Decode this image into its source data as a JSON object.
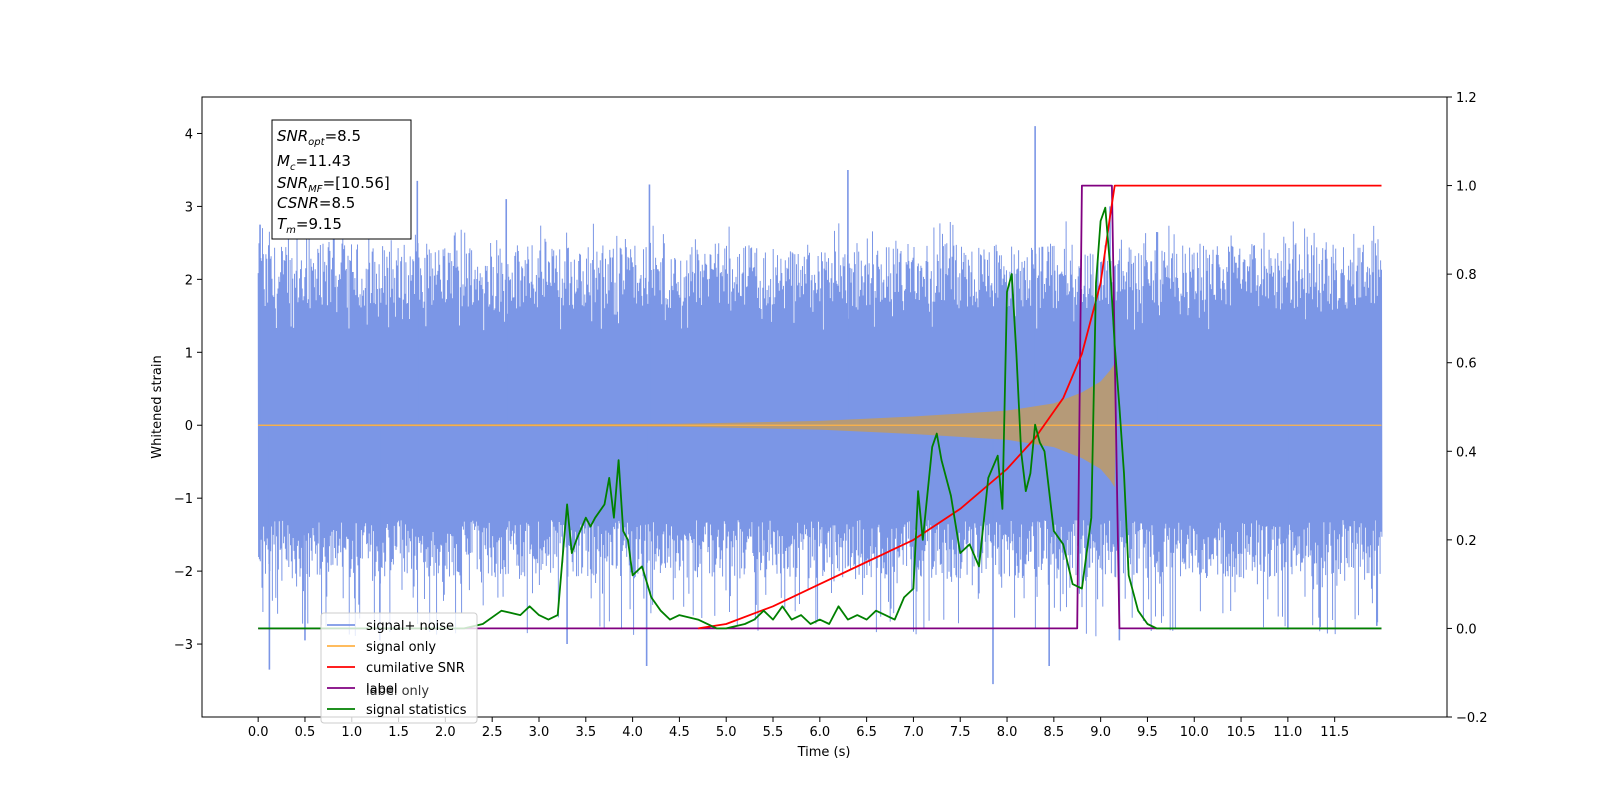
{
  "chart_data": {
    "type": "line",
    "xlabel": "Time (s)",
    "ylabel": "Whitened strain",
    "xlim": [
      -0.6,
      12.7
    ],
    "ylim": [
      -4.0,
      4.5
    ],
    "ylim_right": [
      -0.2,
      1.2
    ],
    "x_ticks": [
      "0.0",
      "0.5",
      "1.0",
      "1.5",
      "2.0",
      "2.5",
      "3.0",
      "3.5",
      "4.0",
      "4.5",
      "5.0",
      "5.5",
      "6.0",
      "6.5",
      "7.0",
      "7.5",
      "8.0",
      "8.5",
      "9.0",
      "9.5",
      "10.0",
      "10.5",
      "11.0",
      "11.5"
    ],
    "y_ticks_left": [
      "−3",
      "−2",
      "−1",
      "0",
      "1",
      "2",
      "3",
      "4"
    ],
    "y_ticks_right": [
      "−0.2",
      "0.0",
      "0.2",
      "0.4",
      "0.6",
      "0.8",
      "1.0",
      "1.2"
    ],
    "grid": false,
    "legend_position": "lower-left",
    "annotation": {
      "snr_opt": {
        "sym": "SNR",
        "sub": "opt",
        "val": "=8.5"
      },
      "mc": {
        "sym": "M",
        "sub": "c",
        "val": "=11.43"
      },
      "snr_mf": {
        "sym": "SNR",
        "sub": "MF",
        "val": "=[10.56]"
      },
      "csnr": {
        "sym": "CSNR",
        "sub": "",
        "val": "=8.5"
      },
      "tm": {
        "sym": "T",
        "sub": "m",
        "val": "=9.15"
      }
    },
    "series": [
      {
        "name": "signal+ noise",
        "color": "#7b96e6",
        "axis": "left",
        "x_range": [
          0.0,
          12.0
        ],
        "band_lower": -1.3,
        "band_upper": 1.3,
        "peaks": [
          {
            "x": 0.02,
            "y": 2.75
          },
          {
            "x": 0.12,
            "y": -3.35
          },
          {
            "x": 0.5,
            "y": -2.95
          },
          {
            "x": 1.3,
            "y": -2.95
          },
          {
            "x": 1.7,
            "y": 3.35
          },
          {
            "x": 2.65,
            "y": 3.1
          },
          {
            "x": 3.3,
            "y": -3.0
          },
          {
            "x": 4.15,
            "y": -3.3
          },
          {
            "x": 4.18,
            "y": 3.3
          },
          {
            "x": 6.3,
            "y": 3.5
          },
          {
            "x": 7.85,
            "y": -3.55
          },
          {
            "x": 8.3,
            "y": 4.1
          },
          {
            "x": 8.45,
            "y": -3.3
          },
          {
            "x": 9.1,
            "y": 3.0
          },
          {
            "x": 9.2,
            "y": -2.95
          },
          {
            "x": 9.6,
            "y": 2.65
          },
          {
            "x": 11.0,
            "y": -2.8
          },
          {
            "x": 11.95,
            "y": -2.75
          }
        ]
      },
      {
        "name": "signal only",
        "color": "#ffb347",
        "axis": "left",
        "envelope": {
          "x": [
            0.0,
            4.5,
            6.0,
            7.0,
            8.0,
            8.5,
            8.8,
            9.0,
            9.1,
            9.15,
            9.16,
            12.0
          ],
          "amp": [
            0.01,
            0.02,
            0.06,
            0.12,
            0.2,
            0.3,
            0.45,
            0.6,
            0.75,
            0.85,
            0.0,
            0.0
          ]
        }
      },
      {
        "name": "cumilative SNR",
        "color": "#ff0000",
        "axis": "right",
        "x": [
          4.7,
          5.0,
          5.5,
          6.0,
          6.5,
          7.0,
          7.5,
          8.0,
          8.3,
          8.6,
          8.8,
          9.0,
          9.1,
          9.15,
          12.0
        ],
        "y": [
          0.0,
          0.01,
          0.05,
          0.1,
          0.15,
          0.2,
          0.27,
          0.36,
          0.43,
          0.52,
          0.62,
          0.78,
          0.93,
          1.0,
          1.0
        ]
      },
      {
        "name": "label",
        "color": "#800080",
        "axis": "right",
        "x": [
          0.0,
          8.75,
          8.8,
          9.12,
          9.2,
          12.0
        ],
        "y": [
          0.0,
          0.0,
          1.0,
          1.0,
          0.0,
          0.0
        ]
      },
      {
        "name": "signal statistics",
        "color": "#008000",
        "axis": "right",
        "x": [
          0.0,
          2.2,
          2.4,
          2.6,
          2.8,
          2.9,
          3.0,
          3.1,
          3.2,
          3.3,
          3.35,
          3.4,
          3.5,
          3.55,
          3.6,
          3.7,
          3.75,
          3.8,
          3.85,
          3.9,
          3.95,
          4.0,
          4.05,
          4.1,
          4.2,
          4.3,
          4.4,
          4.5,
          4.7,
          4.9,
          5.0,
          5.2,
          5.3,
          5.4,
          5.5,
          5.6,
          5.7,
          5.8,
          5.9,
          6.0,
          6.1,
          6.2,
          6.3,
          6.4,
          6.5,
          6.6,
          6.7,
          6.8,
          6.9,
          7.0,
          7.05,
          7.1,
          7.2,
          7.25,
          7.3,
          7.4,
          7.5,
          7.6,
          7.7,
          7.8,
          7.9,
          7.95,
          8.0,
          8.05,
          8.1,
          8.15,
          8.2,
          8.25,
          8.3,
          8.35,
          8.4,
          8.5,
          8.6,
          8.7,
          8.8,
          8.9,
          8.95,
          9.0,
          9.05,
          9.1,
          9.15,
          9.2,
          9.25,
          9.3,
          9.4,
          9.5,
          9.6,
          9.8,
          12.0
        ],
        "y": [
          0.0,
          0.0,
          0.01,
          0.04,
          0.03,
          0.05,
          0.03,
          0.02,
          0.03,
          0.28,
          0.17,
          0.2,
          0.25,
          0.23,
          0.25,
          0.28,
          0.34,
          0.25,
          0.38,
          0.22,
          0.2,
          0.12,
          0.13,
          0.14,
          0.07,
          0.04,
          0.02,
          0.03,
          0.02,
          0.0,
          0.0,
          0.01,
          0.02,
          0.04,
          0.02,
          0.05,
          0.02,
          0.03,
          0.01,
          0.02,
          0.01,
          0.05,
          0.02,
          0.03,
          0.02,
          0.04,
          0.03,
          0.02,
          0.07,
          0.09,
          0.31,
          0.2,
          0.41,
          0.44,
          0.38,
          0.3,
          0.17,
          0.19,
          0.14,
          0.34,
          0.39,
          0.27,
          0.76,
          0.8,
          0.62,
          0.4,
          0.31,
          0.35,
          0.46,
          0.42,
          0.4,
          0.22,
          0.19,
          0.1,
          0.09,
          0.25,
          0.78,
          0.92,
          0.95,
          0.82,
          0.64,
          0.5,
          0.35,
          0.12,
          0.04,
          0.01,
          0.0,
          0.0,
          0.0
        ]
      }
    ],
    "legend_entries": [
      "signal+ noise",
      "signal only",
      "cumilative SNR",
      "label",
      "label only",
      "signal statistics"
    ]
  }
}
